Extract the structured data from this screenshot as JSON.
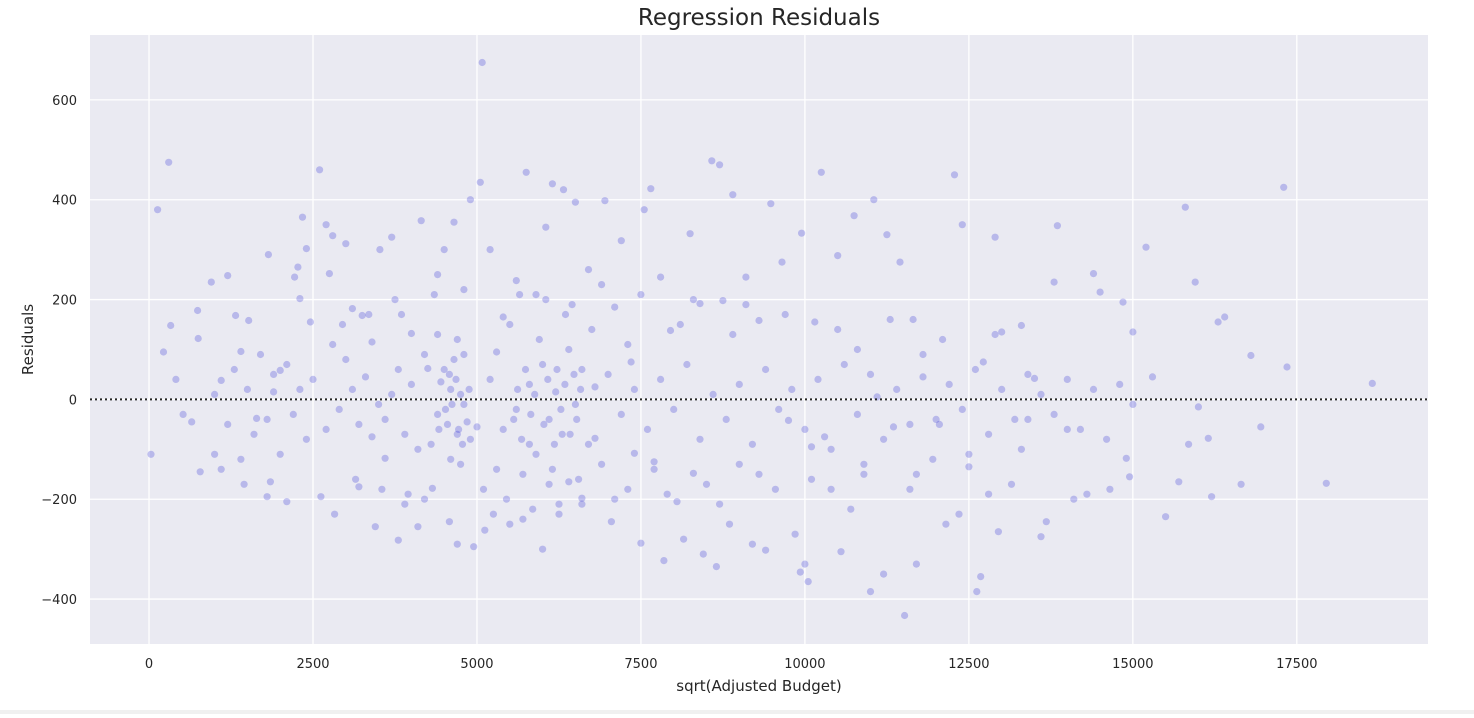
{
  "chart_data": {
    "type": "scatter",
    "title": "Regression Residuals",
    "xlabel": "sqrt(Adjusted Budget)",
    "ylabel": "Residuals",
    "xlim": [
      -900,
      19500
    ],
    "ylim": [
      -490,
      730
    ],
    "x_ticks": [
      0,
      2500,
      5000,
      7500,
      10000,
      12500,
      15000,
      17500
    ],
    "x_tick_labels": [
      "0",
      "2500",
      "5000",
      "7500",
      "10000",
      "12500",
      "15000",
      "17500"
    ],
    "y_ticks": [
      -400,
      -200,
      0,
      200,
      400,
      600
    ],
    "y_tick_labels": [
      "−400",
      "−200",
      "0",
      "200",
      "400",
      "600"
    ],
    "grid": true,
    "reference_line": {
      "y": 0,
      "style": "dotted",
      "color": "#262626"
    },
    "colors": {
      "background": "#eaeaf2",
      "grid": "#ffffff",
      "marker": "#3535d9"
    },
    "marker_opacity": 0.28,
    "points": [
      [
        30,
        -110
      ],
      [
        130,
        380
      ],
      [
        300,
        475
      ],
      [
        330,
        148
      ],
      [
        220,
        95
      ],
      [
        410,
        40
      ],
      [
        520,
        -30
      ],
      [
        650,
        -45
      ],
      [
        740,
        178
      ],
      [
        750,
        122
      ],
      [
        780,
        -145
      ],
      [
        950,
        235
      ],
      [
        1000,
        -110
      ],
      [
        1100,
        38
      ],
      [
        1200,
        248
      ],
      [
        1320,
        168
      ],
      [
        1400,
        96
      ],
      [
        1450,
        -170
      ],
      [
        1520,
        158
      ],
      [
        1640,
        -38
      ],
      [
        1800,
        -195
      ],
      [
        1820,
        290
      ],
      [
        1850,
        -165
      ],
      [
        1900,
        15
      ],
      [
        2000,
        58
      ],
      [
        2100,
        -205
      ],
      [
        2220,
        245
      ],
      [
        2270,
        265
      ],
      [
        2300,
        202
      ],
      [
        2340,
        365
      ],
      [
        2400,
        302
      ],
      [
        2460,
        155
      ],
      [
        2600,
        460
      ],
      [
        2620,
        -195
      ],
      [
        2700,
        350
      ],
      [
        2750,
        252
      ],
      [
        2800,
        328
      ],
      [
        2830,
        -230
      ],
      [
        3000,
        312
      ],
      [
        3100,
        182
      ],
      [
        3200,
        -175
      ],
      [
        3250,
        168
      ],
      [
        3400,
        115
      ],
      [
        3450,
        -255
      ],
      [
        3520,
        300
      ],
      [
        3600,
        -118
      ],
      [
        3700,
        325
      ],
      [
        3800,
        -282
      ],
      [
        3850,
        170
      ],
      [
        3900,
        -210
      ],
      [
        4000,
        132
      ],
      [
        4100,
        -255
      ],
      [
        4150,
        358
      ],
      [
        4250,
        62
      ],
      [
        4320,
        -178
      ],
      [
        4400,
        250
      ],
      [
        4500,
        300
      ],
      [
        4580,
        -245
      ],
      [
        4650,
        355
      ],
      [
        4700,
        -290
      ],
      [
        4750,
        -130
      ],
      [
        4800,
        220
      ],
      [
        4900,
        400
      ],
      [
        4950,
        -295
      ],
      [
        5000,
        -55
      ],
      [
        5050,
        435
      ],
      [
        5080,
        675
      ],
      [
        5120,
        -262
      ],
      [
        5200,
        300
      ],
      [
        5300,
        -140
      ],
      [
        5400,
        165
      ],
      [
        5500,
        -250
      ],
      [
        5600,
        238
      ],
      [
        5700,
        -240
      ],
      [
        5750,
        455
      ],
      [
        5800,
        -90
      ],
      [
        5900,
        210
      ],
      [
        6000,
        -300
      ],
      [
        6050,
        345
      ],
      [
        6100,
        -170
      ],
      [
        6150,
        432
      ],
      [
        6250,
        -210
      ],
      [
        6320,
        420
      ],
      [
        6400,
        -165
      ],
      [
        6500,
        395
      ],
      [
        6600,
        -198
      ],
      [
        6700,
        260
      ],
      [
        6800,
        -78
      ],
      [
        6950,
        398
      ],
      [
        7050,
        -245
      ],
      [
        7100,
        185
      ],
      [
        7200,
        318
      ],
      [
        7300,
        -180
      ],
      [
        7350,
        75
      ],
      [
        7400,
        -108
      ],
      [
        7500,
        -288
      ],
      [
        7550,
        380
      ],
      [
        7650,
        422
      ],
      [
        7700,
        -125
      ],
      [
        7800,
        245
      ],
      [
        7850,
        -323
      ],
      [
        7950,
        138
      ],
      [
        8050,
        -205
      ],
      [
        8150,
        -280
      ],
      [
        8250,
        332
      ],
      [
        8300,
        -148
      ],
      [
        8400,
        192
      ],
      [
        8450,
        -310
      ],
      [
        8580,
        478
      ],
      [
        8650,
        -335
      ],
      [
        8700,
        470
      ],
      [
        8750,
        198
      ],
      [
        8850,
        -250
      ],
      [
        8900,
        410
      ],
      [
        9000,
        -130
      ],
      [
        9100,
        245
      ],
      [
        9200,
        -290
      ],
      [
        9300,
        158
      ],
      [
        9400,
        -302
      ],
      [
        9480,
        392
      ],
      [
        9550,
        -180
      ],
      [
        9650,
        275
      ],
      [
        9750,
        -42
      ],
      [
        9850,
        -270
      ],
      [
        9930,
        -346
      ],
      [
        9950,
        333
      ],
      [
        10000,
        -330
      ],
      [
        10050,
        -365
      ],
      [
        10100,
        -95
      ],
      [
        10150,
        155
      ],
      [
        10250,
        455
      ],
      [
        10300,
        -75
      ],
      [
        10400,
        -180
      ],
      [
        10500,
        288
      ],
      [
        10550,
        -305
      ],
      [
        10700,
        -220
      ],
      [
        10750,
        368
      ],
      [
        10800,
        100
      ],
      [
        10900,
        -150
      ],
      [
        11000,
        -385
      ],
      [
        11050,
        400
      ],
      [
        11100,
        5
      ],
      [
        11200,
        -350
      ],
      [
        11250,
        330
      ],
      [
        11350,
        -55
      ],
      [
        11450,
        275
      ],
      [
        11520,
        -433
      ],
      [
        11600,
        -180
      ],
      [
        11650,
        160
      ],
      [
        11700,
        -330
      ],
      [
        11800,
        45
      ],
      [
        11950,
        -120
      ],
      [
        12050,
        -50
      ],
      [
        12150,
        -250
      ],
      [
        12280,
        450
      ],
      [
        12350,
        -230
      ],
      [
        12400,
        350
      ],
      [
        12500,
        -135
      ],
      [
        12620,
        -385
      ],
      [
        12680,
        -355
      ],
      [
        12720,
        75
      ],
      [
        12800,
        -190
      ],
      [
        12900,
        325
      ],
      [
        12950,
        -265
      ],
      [
        13000,
        135
      ],
      [
        13150,
        -170
      ],
      [
        13300,
        148
      ],
      [
        13400,
        -40
      ],
      [
        13500,
        42
      ],
      [
        13600,
        -275
      ],
      [
        13680,
        -245
      ],
      [
        13800,
        235
      ],
      [
        13850,
        348
      ],
      [
        14000,
        -60
      ],
      [
        14100,
        -200
      ],
      [
        14300,
        -190
      ],
      [
        14400,
        252
      ],
      [
        14500,
        215
      ],
      [
        14650,
        -180
      ],
      [
        14850,
        195
      ],
      [
        14900,
        -118
      ],
      [
        14950,
        -155
      ],
      [
        15000,
        135
      ],
      [
        15200,
        305
      ],
      [
        15300,
        45
      ],
      [
        15500,
        -235
      ],
      [
        15700,
        -165
      ],
      [
        15800,
        385
      ],
      [
        15850,
        -90
      ],
      [
        15950,
        235
      ],
      [
        16000,
        -15
      ],
      [
        16150,
        -78
      ],
      [
        16200,
        -195
      ],
      [
        16300,
        155
      ],
      [
        16400,
        165
      ],
      [
        16650,
        -170
      ],
      [
        16800,
        88
      ],
      [
        16950,
        -55
      ],
      [
        17300,
        425
      ],
      [
        17350,
        65
      ],
      [
        17950,
        -168
      ],
      [
        18650,
        32
      ],
      [
        4400,
        -30
      ],
      [
        4600,
        20
      ],
      [
        4700,
        -70
      ],
      [
        4500,
        60
      ],
      [
        4800,
        -10
      ],
      [
        4300,
        -90
      ],
      [
        4650,
        80
      ],
      [
        4750,
        10
      ],
      [
        4550,
        -50
      ],
      [
        4450,
        35
      ],
      [
        4850,
        -45
      ],
      [
        4700,
        120
      ],
      [
        4600,
        -120
      ],
      [
        4800,
        90
      ],
      [
        4900,
        -80
      ],
      [
        4400,
        130
      ],
      [
        5200,
        40
      ],
      [
        5400,
        -60
      ],
      [
        5600,
        -20
      ],
      [
        5800,
        30
      ],
      [
        5900,
        -110
      ],
      [
        6000,
        70
      ],
      [
        6100,
        -40
      ],
      [
        6200,
        15
      ],
      [
        6300,
        -70
      ],
      [
        6400,
        100
      ],
      [
        6500,
        -10
      ],
      [
        6600,
        60
      ],
      [
        6700,
        -90
      ],
      [
        6800,
        25
      ],
      [
        6900,
        -130
      ],
      [
        7000,
        50
      ],
      [
        5300,
        95
      ],
      [
        5500,
        150
      ],
      [
        5700,
        -150
      ],
      [
        5950,
        120
      ],
      [
        6150,
        -140
      ],
      [
        6350,
        170
      ],
      [
        6550,
        -160
      ],
      [
        6750,
        140
      ],
      [
        3600,
        -40
      ],
      [
        3700,
        10
      ],
      [
        3800,
        60
      ],
      [
        3900,
        -70
      ],
      [
        4000,
        30
      ],
      [
        4100,
        -100
      ],
      [
        4200,
        90
      ],
      [
        3500,
        -10
      ],
      [
        3300,
        45
      ],
      [
        3400,
        -75
      ],
      [
        3100,
        20
      ],
      [
        3200,
        -50
      ],
      [
        3000,
        80
      ],
      [
        2900,
        -20
      ],
      [
        2800,
        110
      ],
      [
        2700,
        -60
      ],
      [
        2500,
        40
      ],
      [
        2400,
        -80
      ],
      [
        2300,
        20
      ],
      [
        2200,
        -30
      ],
      [
        2100,
        70
      ],
      [
        2000,
        -110
      ],
      [
        1900,
        50
      ],
      [
        1800,
        -40
      ],
      [
        1700,
        90
      ],
      [
        1600,
        -70
      ],
      [
        1500,
        20
      ],
      [
        1400,
        -120
      ],
      [
        1300,
        60
      ],
      [
        1200,
        -50
      ],
      [
        1100,
        -140
      ],
      [
        1000,
        10
      ],
      [
        7200,
        -30
      ],
      [
        7400,
        20
      ],
      [
        7600,
        -60
      ],
      [
        7800,
        40
      ],
      [
        8000,
        -20
      ],
      [
        8200,
        70
      ],
      [
        8400,
        -80
      ],
      [
        8600,
        10
      ],
      [
        8800,
        -40
      ],
      [
        9000,
        30
      ],
      [
        9200,
        -90
      ],
      [
        9400,
        60
      ],
      [
        9600,
        -20
      ],
      [
        9800,
        20
      ],
      [
        10000,
        -60
      ],
      [
        10200,
        40
      ],
      [
        10400,
        -100
      ],
      [
        10600,
        70
      ],
      [
        10800,
        -30
      ],
      [
        11000,
        50
      ],
      [
        11200,
        -80
      ],
      [
        11400,
        20
      ],
      [
        11600,
        -50
      ],
      [
        11800,
        90
      ],
      [
        12000,
        -40
      ],
      [
        12200,
        30
      ],
      [
        12400,
        -20
      ],
      [
        12600,
        60
      ],
      [
        12800,
        -70
      ],
      [
        13000,
        20
      ],
      [
        13200,
        -40
      ],
      [
        13400,
        50
      ],
      [
        13600,
        10
      ],
      [
        13800,
        -30
      ],
      [
        14000,
        40
      ],
      [
        14200,
        -60
      ],
      [
        14400,
        20
      ],
      [
        14600,
        -80
      ],
      [
        14800,
        30
      ],
      [
        15000,
        -10
      ],
      [
        7300,
        110
      ],
      [
        7700,
        -140
      ],
      [
        8100,
        150
      ],
      [
        8500,
        -170
      ],
      [
        8900,
        130
      ],
      [
        9300,
        -150
      ],
      [
        9700,
        170
      ],
      [
        10100,
        -160
      ],
      [
        10500,
        140
      ],
      [
        10900,
        -130
      ],
      [
        11300,
        160
      ],
      [
        11700,
        -150
      ],
      [
        12100,
        120
      ],
      [
        12500,
        -110
      ],
      [
        12900,
        130
      ],
      [
        13300,
        -100
      ],
      [
        5100,
        -180
      ],
      [
        5250,
        -230
      ],
      [
        5450,
        -200
      ],
      [
        5650,
        210
      ],
      [
        5850,
        -220
      ],
      [
        6050,
        200
      ],
      [
        6250,
        -230
      ],
      [
        6450,
        190
      ],
      [
        4200,
        -200
      ],
      [
        4350,
        210
      ],
      [
        3950,
        -190
      ],
      [
        3750,
        200
      ],
      [
        3550,
        -180
      ],
      [
        3350,
        170
      ],
      [
        3150,
        -160
      ],
      [
        2950,
        150
      ],
      [
        6600,
        -210
      ],
      [
        6900,
        230
      ],
      [
        7100,
        -200
      ],
      [
        7500,
        210
      ],
      [
        7900,
        -190
      ],
      [
        8300,
        200
      ],
      [
        8700,
        -210
      ],
      [
        9100,
        190
      ],
      [
        4620,
        -10
      ],
      [
        4680,
        40
      ],
      [
        4720,
        -60
      ],
      [
        4580,
        50
      ],
      [
        4780,
        -90
      ],
      [
        4520,
        -20
      ],
      [
        4880,
        20
      ],
      [
        4420,
        -60
      ],
      [
        5560,
        -40
      ],
      [
        5620,
        20
      ],
      [
        5680,
        -80
      ],
      [
        5740,
        60
      ],
      [
        5820,
        -30
      ],
      [
        5880,
        10
      ],
      [
        6020,
        -50
      ],
      [
        6080,
        40
      ],
      [
        6180,
        -90
      ],
      [
        6220,
        60
      ],
      [
        6280,
        -20
      ],
      [
        6340,
        30
      ],
      [
        6420,
        -70
      ],
      [
        6480,
        50
      ],
      [
        6520,
        -40
      ],
      [
        6580,
        20
      ]
    ]
  }
}
